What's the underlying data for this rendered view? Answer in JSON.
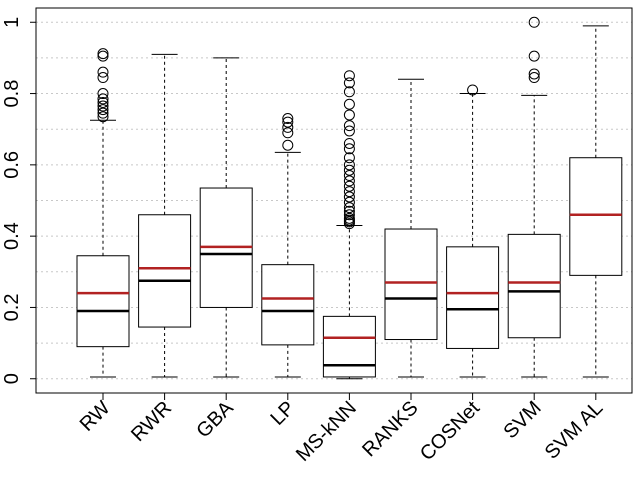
{
  "chart_data": {
    "type": "boxplot",
    "title": "",
    "xlabel": "",
    "ylabel": "",
    "ylim": [
      -0.04,
      1.04
    ],
    "y_ticks": [
      0,
      0.2,
      0.4,
      0.6,
      0.8,
      1
    ],
    "y_tick_labels": [
      "0",
      "0.2",
      "0.4",
      "0.6",
      "0.8",
      "1"
    ],
    "grid": "horizontal-dotted",
    "categories": [
      "RW",
      "RWR",
      "GBA",
      "LP",
      "MS-kNN",
      "RANKS",
      "COSNet",
      "SVM",
      "SVM AL"
    ],
    "boxes": [
      {
        "name": "RW",
        "min": 0.005,
        "q1": 0.09,
        "median": 0.19,
        "mean": 0.24,
        "q3": 0.345,
        "max": 0.725,
        "outliers": [
          0.735,
          0.745,
          0.755,
          0.765,
          0.775,
          0.785,
          0.8,
          0.845,
          0.86,
          0.905,
          0.912
        ]
      },
      {
        "name": "RWR",
        "min": 0.005,
        "q1": 0.145,
        "median": 0.275,
        "mean": 0.31,
        "q3": 0.46,
        "max": 0.91,
        "outliers": []
      },
      {
        "name": "GBA",
        "min": 0.005,
        "q1": 0.2,
        "median": 0.35,
        "mean": 0.37,
        "q3": 0.535,
        "max": 0.9,
        "outliers": []
      },
      {
        "name": "LP",
        "min": 0.005,
        "q1": 0.095,
        "median": 0.19,
        "mean": 0.225,
        "q3": 0.32,
        "max": 0.635,
        "outliers": [
          0.655,
          0.69,
          0.705,
          0.72,
          0.73
        ]
      },
      {
        "name": "MS-kNN",
        "min": 0.0,
        "q1": 0.005,
        "median": 0.038,
        "mean": 0.115,
        "q3": 0.175,
        "max": 0.43,
        "outliers": [
          0.435,
          0.44,
          0.445,
          0.45,
          0.46,
          0.47,
          0.48,
          0.495,
          0.51,
          0.525,
          0.54,
          0.555,
          0.57,
          0.585,
          0.6,
          0.62,
          0.645,
          0.66,
          0.695,
          0.71,
          0.74,
          0.77,
          0.805,
          0.83,
          0.85
        ]
      },
      {
        "name": "RANKS",
        "min": 0.005,
        "q1": 0.11,
        "median": 0.225,
        "mean": 0.27,
        "q3": 0.42,
        "max": 0.84,
        "outliers": []
      },
      {
        "name": "COSNet",
        "min": 0.005,
        "q1": 0.085,
        "median": 0.195,
        "mean": 0.24,
        "q3": 0.37,
        "max": 0.8,
        "outliers": [
          0.81
        ]
      },
      {
        "name": "SVM",
        "min": 0.005,
        "q1": 0.115,
        "median": 0.245,
        "mean": 0.27,
        "q3": 0.405,
        "max": 0.795,
        "outliers": [
          0.845,
          0.855,
          0.905,
          1.0
        ]
      },
      {
        "name": "SVM AL",
        "min": 0.005,
        "q1": 0.29,
        "median": 0.46,
        "mean": 0.46,
        "q3": 0.62,
        "max": 0.99,
        "outliers": []
      }
    ],
    "colors": {
      "box": "#000000",
      "median": "#000000",
      "mean": "#b22222",
      "grid": "#c8c8c8",
      "outlier": "#000000"
    }
  }
}
